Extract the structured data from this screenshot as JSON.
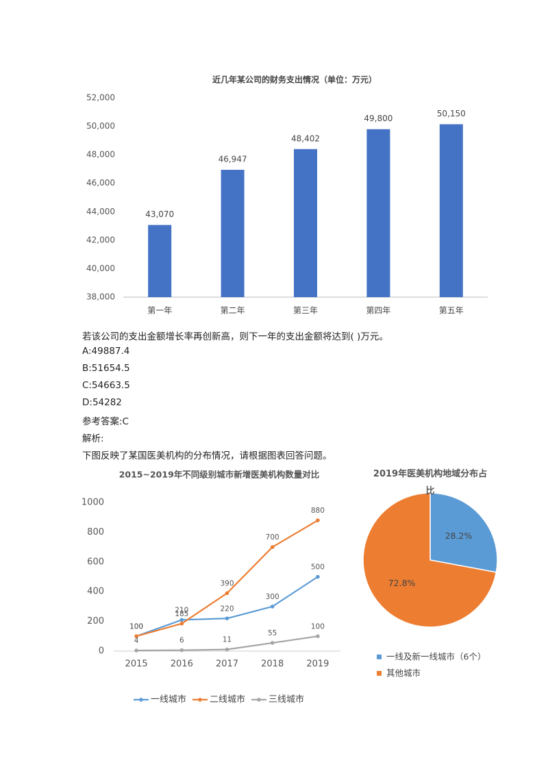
{
  "chart_data": [
    {
      "type": "bar",
      "title": "近几年某公司的财务支出情况（单位：万元）",
      "categories": [
        "第一年",
        "第二年",
        "第三年",
        "第四年",
        "第五年"
      ],
      "values": [
        43070,
        46947,
        48402,
        49800,
        50150
      ],
      "value_labels": [
        "43,070",
        "46,947",
        "48,402",
        "49,800",
        "50,150"
      ],
      "color": "#4472c4",
      "ylim": [
        38000,
        52000
      ],
      "yticks": [
        {
          "value": 38000,
          "label": "38,000"
        },
        {
          "value": 40000,
          "label": "40,000"
        },
        {
          "value": 42000,
          "label": "42,000"
        },
        {
          "value": 44000,
          "label": "44,000"
        },
        {
          "value": 46000,
          "label": "46,000"
        },
        {
          "value": 48000,
          "label": "48,000"
        },
        {
          "value": 50000,
          "label": "50,000"
        },
        {
          "value": 52000,
          "label": "52,000"
        }
      ],
      "grid": false
    },
    {
      "type": "line",
      "title": "2015~2019年不同级别城市新增医美机构数量对比",
      "categories": [
        "2015",
        "2016",
        "2017",
        "2018",
        "2019"
      ],
      "series": [
        {
          "name": "一线城市",
          "color": "#5b9bd5",
          "values": [
            100,
            210,
            220,
            300,
            500
          ]
        },
        {
          "name": "二线城市",
          "color": "#ed7d31",
          "values": [
            100,
            185,
            390,
            700,
            880
          ]
        },
        {
          "name": "三线城市",
          "color": "#a5a5a5",
          "values": [
            4,
            6,
            11,
            55,
            100
          ]
        }
      ],
      "ylim": [
        0,
        1000
      ],
      "yticks": [
        0,
        200,
        400,
        600,
        800,
        1000
      ],
      "grid": false,
      "legend": "bottom"
    },
    {
      "type": "pie",
      "title": "2019年医美机构地域分布占比",
      "categories": [
        "一线及新一线城市（6个）",
        "其他城市"
      ],
      "values": [
        28.2,
        72.8
      ],
      "value_labels": [
        "28.2%",
        "72.8%"
      ],
      "colors": [
        "#5b9bd5",
        "#ed7d31"
      ],
      "legend": "bottom"
    }
  ],
  "question": {
    "stem": "若该公司的支出金额增长率再创新高，则下一年的支出金额将达到( )万元。",
    "options": [
      "A:49887.4",
      "B:51654.5",
      "C:54663.5",
      "D:54282"
    ],
    "answer": "参考答案:C",
    "analysis": "解析:",
    "intro": "下图反映了某国医美机构的分布情况，请根据图表回答问题。"
  }
}
